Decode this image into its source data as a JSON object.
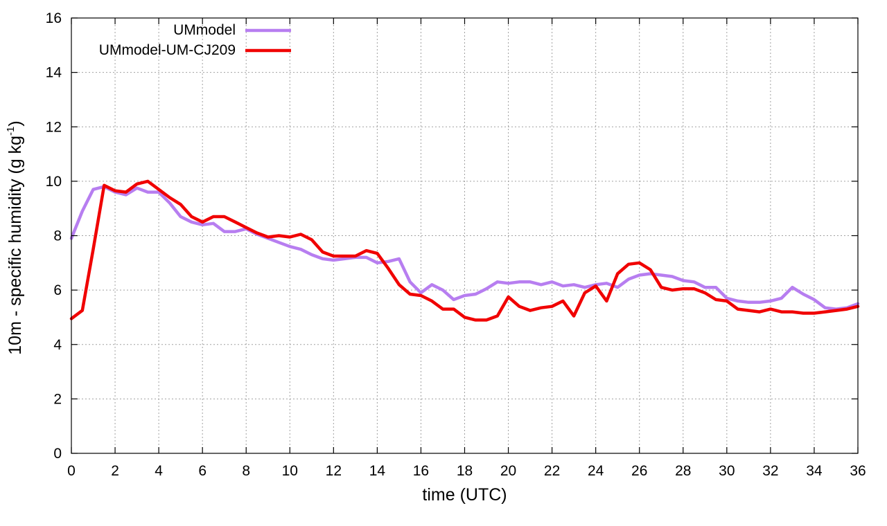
{
  "chart_data": {
    "type": "line",
    "title": "",
    "xlabel": "time (UTC)",
    "ylabel": {
      "main": "10m - specific humidity (g kg",
      "sup": "-1",
      "close": ")"
    },
    "xlim": [
      0,
      36
    ],
    "ylim": [
      0,
      16
    ],
    "xticks": [
      0,
      2,
      4,
      6,
      8,
      10,
      12,
      14,
      16,
      18,
      20,
      22,
      24,
      26,
      28,
      30,
      32,
      34,
      36
    ],
    "yticks": [
      0,
      2,
      4,
      6,
      8,
      10,
      12,
      14,
      16
    ],
    "grid": true,
    "legend_position": "top-left",
    "series": [
      {
        "name": "UMmodel",
        "color": "#b77ef0",
        "x": [
          0,
          0.5,
          1,
          1.5,
          2,
          2.5,
          3,
          3.5,
          4,
          4.5,
          5,
          5.5,
          6,
          6.5,
          7,
          7.5,
          8,
          8.5,
          9,
          9.5,
          10,
          10.5,
          11,
          11.5,
          12,
          12.5,
          13,
          13.5,
          14,
          14.5,
          15,
          15.5,
          16,
          16.5,
          17,
          17.5,
          18,
          18.5,
          19,
          19.5,
          20,
          20.5,
          21,
          21.5,
          22,
          22.5,
          23,
          23.5,
          24,
          24.5,
          25,
          25.5,
          26,
          26.5,
          27,
          27.5,
          28,
          28.5,
          29,
          29.5,
          30,
          30.5,
          31,
          31.5,
          32,
          32.5,
          33,
          33.5,
          34,
          34.5,
          35,
          35.5,
          36
        ],
        "values": [
          7.9,
          8.9,
          9.7,
          9.8,
          9.6,
          9.5,
          9.75,
          9.6,
          9.6,
          9.2,
          8.7,
          8.5,
          8.4,
          8.45,
          8.15,
          8.15,
          8.25,
          8.05,
          7.9,
          7.75,
          7.6,
          7.5,
          7.3,
          7.15,
          7.1,
          7.15,
          7.2,
          7.2,
          7.0,
          7.05,
          7.15,
          6.3,
          5.9,
          6.2,
          6.0,
          5.65,
          5.8,
          5.85,
          6.05,
          6.3,
          6.25,
          6.3,
          6.3,
          6.2,
          6.3,
          6.15,
          6.2,
          6.1,
          6.2,
          6.25,
          6.1,
          6.4,
          6.55,
          6.6,
          6.55,
          6.5,
          6.35,
          6.3,
          6.1,
          6.1,
          5.7,
          5.6,
          5.55,
          5.55,
          5.6,
          5.7,
          6.1,
          5.85,
          5.65,
          5.35,
          5.3,
          5.35,
          5.5
        ]
      },
      {
        "name": "UMmodel-UM-CJ209",
        "color": "#f00000",
        "x": [
          0,
          0.5,
          1,
          1.5,
          2,
          2.5,
          3,
          3.5,
          4,
          4.5,
          5,
          5.5,
          6,
          6.5,
          7,
          7.5,
          8,
          8.5,
          9,
          9.5,
          10,
          10.5,
          11,
          11.5,
          12,
          12.5,
          13,
          13.5,
          14,
          14.5,
          15,
          15.5,
          16,
          16.5,
          17,
          17.5,
          18,
          18.5,
          19,
          19.5,
          20,
          20.5,
          21,
          21.5,
          22,
          22.5,
          23,
          23.5,
          24,
          24.5,
          25,
          25.5,
          26,
          26.5,
          27,
          27.5,
          28,
          28.5,
          29,
          29.5,
          30,
          30.5,
          31,
          31.5,
          32,
          32.5,
          33,
          33.5,
          34,
          34.5,
          35,
          35.5,
          36
        ],
        "values": [
          4.95,
          5.25,
          7.5,
          9.85,
          9.65,
          9.6,
          9.9,
          10.0,
          9.7,
          9.4,
          9.15,
          8.7,
          8.5,
          8.7,
          8.7,
          8.5,
          8.3,
          8.1,
          7.95,
          8.0,
          7.95,
          8.05,
          7.85,
          7.4,
          7.25,
          7.25,
          7.25,
          7.45,
          7.35,
          6.8,
          6.2,
          5.85,
          5.8,
          5.6,
          5.3,
          5.3,
          5.0,
          4.9,
          4.9,
          5.05,
          5.75,
          5.4,
          5.25,
          5.35,
          5.4,
          5.6,
          5.05,
          5.9,
          6.15,
          5.6,
          6.6,
          6.95,
          7.0,
          6.75,
          6.1,
          6.0,
          6.05,
          6.05,
          5.9,
          5.65,
          5.6,
          5.3,
          5.25,
          5.2,
          5.3,
          5.2,
          5.2,
          5.15,
          5.15,
          5.2,
          5.25,
          5.3,
          5.4
        ]
      }
    ]
  }
}
